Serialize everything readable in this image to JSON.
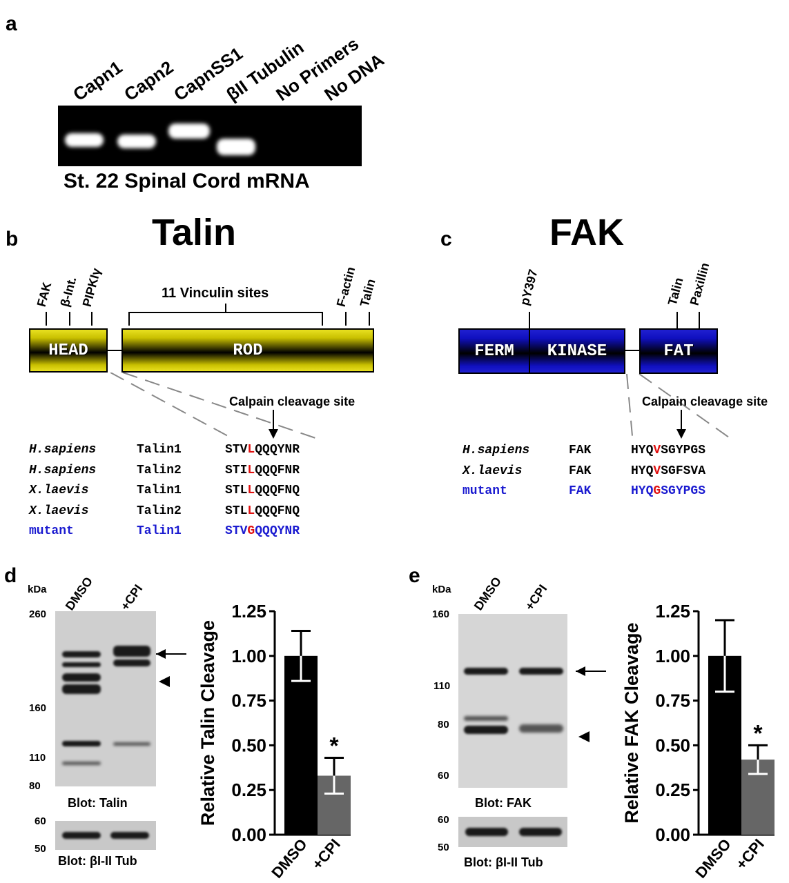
{
  "panel_a": {
    "label": "a",
    "lanes": [
      "Capn1",
      "Capn2",
      "CapnSS1",
      "βII Tubulin",
      "No Primers",
      "No DNA"
    ],
    "caption": "St. 22 Spinal Cord mRNA"
  },
  "panel_b": {
    "label": "b",
    "title": "Talin",
    "domains": [
      "HEAD",
      "ROD"
    ],
    "sites_head": [
      "FAK",
      "β-Int.",
      "PIPKIγ"
    ],
    "vinculin": "11 Vinculin sites",
    "sites_tail": [
      "F-actin",
      "Talin"
    ],
    "cleavage": "Calpain cleavage site",
    "rows": [
      {
        "species": "H.sapiens",
        "protein": "Talin1",
        "pre": "STV",
        "mut": "L",
        "post": "QQQYNR"
      },
      {
        "species": "H.sapiens",
        "protein": "Talin2",
        "pre": "STI",
        "mut": "L",
        "post": "QQQFNR"
      },
      {
        "species": "X.laevis",
        "protein": "Talin1",
        "pre": "STL",
        "mut": "L",
        "post": "QQQFNQ"
      },
      {
        "species": "X.laevis",
        "protein": "Talin2",
        "pre": "STL",
        "mut": "L",
        "post": "QQQFNQ"
      },
      {
        "species": "mutant",
        "protein": "Talin1",
        "pre": "STV",
        "mut": "G",
        "post": "QQQYNR"
      }
    ]
  },
  "panel_c": {
    "label": "c",
    "title": "FAK",
    "domains": [
      "FERM",
      "KINASE",
      "FAT"
    ],
    "site_mid": "pY397",
    "sites_tail": [
      "Talin",
      "Paxillin"
    ],
    "cleavage": "Calpain cleavage site",
    "rows": [
      {
        "species": "H.sapiens",
        "protein": "FAK",
        "pre": "HYQ",
        "mut": "V",
        "post": "SGYPGS"
      },
      {
        "species": "X.laevis",
        "protein": "FAK",
        "pre": "HYQ",
        "mut": "V",
        "post": "SGFSVA"
      },
      {
        "species": "mutant",
        "protein": "FAK",
        "pre": "HYQ",
        "mut": "G",
        "post": "SGYPGS"
      }
    ]
  },
  "panel_d": {
    "label": "d",
    "kda": "kDa",
    "lanes": [
      "DMSO",
      "+CPI"
    ],
    "markers": [
      "260",
      "160",
      "110",
      "80"
    ],
    "markers_tub": [
      "60",
      "50"
    ],
    "blot1": "Blot: Talin",
    "blot2": "Blot: βI-II Tub"
  },
  "panel_e": {
    "label": "e",
    "kda": "kDa",
    "lanes": [
      "DMSO",
      "+CPI"
    ],
    "markers": [
      "160",
      "110",
      "80",
      "60"
    ],
    "markers_tub": [
      "60",
      "50"
    ],
    "blot1": "Blot: FAK",
    "blot2": "Blot: βI-II Tub"
  },
  "chart_data": [
    {
      "type": "bar",
      "categories": [
        "DMSO",
        "+CPI"
      ],
      "values": [
        1.0,
        0.33
      ],
      "errors": [
        0.14,
        0.1
      ],
      "ylabel": "Relative Talin Cleavage",
      "ylim": [
        0,
        1.25
      ],
      "yticks": [
        "0.00",
        "0.25",
        "0.50",
        "0.75",
        "1.00",
        "1.25"
      ],
      "colors": [
        "#000000",
        "#666666"
      ],
      "annotation": "*"
    },
    {
      "type": "bar",
      "categories": [
        "DMSO",
        "+CPI"
      ],
      "values": [
        1.0,
        0.42
      ],
      "errors": [
        0.2,
        0.08
      ],
      "ylabel": "Relative FAK Cleavage",
      "ylim": [
        0,
        1.25
      ],
      "yticks": [
        "0.00",
        "0.25",
        "0.50",
        "0.75",
        "1.00",
        "1.25"
      ],
      "colors": [
        "#000000",
        "#666666"
      ],
      "annotation": "*"
    }
  ]
}
